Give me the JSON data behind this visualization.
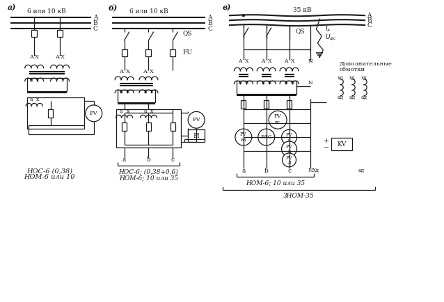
{
  "bg_color": "#ffffff",
  "line_color": "#1a1a1a",
  "fig_width": 6.38,
  "fig_height": 4.34,
  "bottom_labels_a": [
    "НОС-6 (0,38)",
    "НОМ-6 или 10"
  ],
  "bottom_labels_b": [
    "НОС-6; (0,38+0,6)",
    "НОМ-6; 10 или 35"
  ],
  "bottom_labels_v1": "НОМ-6; 10 или 35",
  "bottom_labels_v2": "ЗНОМ-35"
}
